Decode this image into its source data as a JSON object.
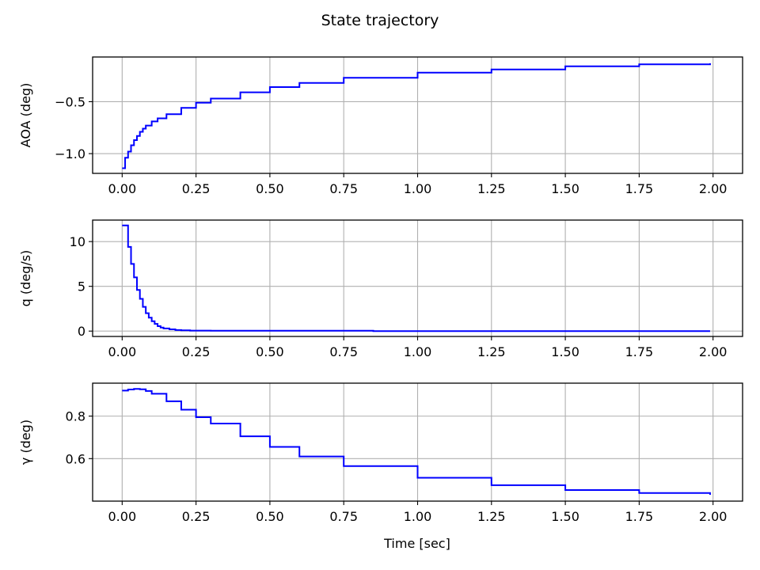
{
  "figure": {
    "title": "State trajectory",
    "xlabel": "Time [sec]"
  },
  "colors": {
    "series": "#0000ff",
    "grid": "#b0b0b0",
    "axes": "#000000",
    "background": "#ffffff"
  },
  "chart_data": [
    {
      "type": "line",
      "step": true,
      "ylabel": "AOA (deg)",
      "xlim": [
        -0.1,
        2.1
      ],
      "ylim": [
        -1.19,
        -0.07
      ],
      "xticks": [
        0.0,
        0.25,
        0.5,
        0.75,
        1.0,
        1.25,
        1.5,
        1.75,
        2.0
      ],
      "xtick_labels": [
        "0.00",
        "0.25",
        "0.50",
        "0.75",
        "1.00",
        "1.25",
        "1.50",
        "1.75",
        "2.00"
      ],
      "yticks": [
        -1.0,
        -0.5
      ],
      "ytick_labels": [
        "−1.0",
        "−0.5"
      ],
      "grid": true,
      "series": [
        {
          "x": [
            0.0,
            0.01,
            0.02,
            0.03,
            0.04,
            0.05,
            0.06,
            0.07,
            0.08,
            0.1,
            0.12,
            0.15,
            0.2,
            0.25,
            0.3,
            0.4,
            0.5,
            0.6,
            0.75,
            1.0,
            1.25,
            1.5,
            1.75,
            1.99
          ],
          "y": [
            -1.14,
            -1.04,
            -0.98,
            -0.92,
            -0.87,
            -0.83,
            -0.79,
            -0.76,
            -0.73,
            -0.69,
            -0.66,
            -0.62,
            -0.56,
            -0.51,
            -0.47,
            -0.41,
            -0.36,
            -0.32,
            -0.27,
            -0.22,
            -0.19,
            -0.16,
            -0.14,
            -0.13
          ]
        }
      ]
    },
    {
      "type": "line",
      "step": true,
      "ylabel": "q (deg/s)",
      "xlim": [
        -0.1,
        2.1
      ],
      "ylim": [
        -0.6,
        12.4
      ],
      "xticks": [
        0.0,
        0.25,
        0.5,
        0.75,
        1.0,
        1.25,
        1.5,
        1.75,
        2.0
      ],
      "xtick_labels": [
        "0.00",
        "0.25",
        "0.50",
        "0.75",
        "1.00",
        "1.25",
        "1.50",
        "1.75",
        "2.00"
      ],
      "yticks": [
        0,
        5,
        10
      ],
      "ytick_labels": [
        "0",
        "5",
        "10"
      ],
      "grid": true,
      "series": [
        {
          "x": [
            0.0,
            0.02,
            0.03,
            0.04,
            0.05,
            0.06,
            0.07,
            0.08,
            0.09,
            0.1,
            0.11,
            0.12,
            0.13,
            0.14,
            0.16,
            0.18,
            0.2,
            0.23,
            0.3,
            0.5,
            0.84,
            0.85,
            1.99
          ],
          "y": [
            11.8,
            9.4,
            7.5,
            6.0,
            4.6,
            3.6,
            2.7,
            2.0,
            1.5,
            1.1,
            0.8,
            0.55,
            0.4,
            0.3,
            0.2,
            0.12,
            0.08,
            0.05,
            0.04,
            0.04,
            0.04,
            0.0,
            0.0
          ]
        }
      ]
    },
    {
      "type": "line",
      "step": true,
      "ylabel": "γ (deg)",
      "xlim": [
        -0.1,
        2.1
      ],
      "ylim": [
        0.4,
        0.955
      ],
      "xticks": [
        0.0,
        0.25,
        0.5,
        0.75,
        1.0,
        1.25,
        1.5,
        1.75,
        2.0
      ],
      "xtick_labels": [
        "0.00",
        "0.25",
        "0.50",
        "0.75",
        "1.00",
        "1.25",
        "1.50",
        "1.75",
        "2.00"
      ],
      "yticks": [
        0.6,
        0.8
      ],
      "ytick_labels": [
        "0.6",
        "0.8"
      ],
      "grid": true,
      "series": [
        {
          "x": [
            0.0,
            0.02,
            0.04,
            0.06,
            0.08,
            0.1,
            0.15,
            0.2,
            0.25,
            0.3,
            0.4,
            0.5,
            0.6,
            0.75,
            1.0,
            1.25,
            1.5,
            1.75,
            1.99
          ],
          "y": [
            0.92,
            0.925,
            0.928,
            0.926,
            0.918,
            0.905,
            0.87,
            0.83,
            0.795,
            0.765,
            0.705,
            0.655,
            0.61,
            0.565,
            0.51,
            0.475,
            0.452,
            0.438,
            0.43
          ]
        }
      ]
    }
  ]
}
